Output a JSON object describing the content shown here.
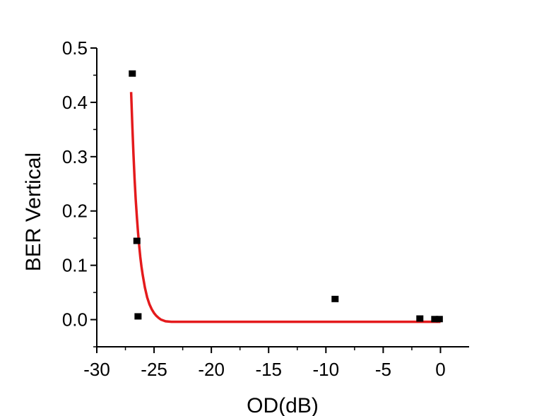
{
  "chart_data": {
    "type": "scatter",
    "xlabel": "OD(dB)",
    "ylabel": "BER Vertical",
    "xlim": [
      -30,
      2.5
    ],
    "ylim": [
      -0.05,
      0.5
    ],
    "x_ticks": [
      -30,
      -25,
      -20,
      -15,
      -10,
      -5,
      0
    ],
    "x_tick_labels": [
      "-30",
      "-25",
      "-20",
      "-15",
      "-10",
      "-5",
      "0"
    ],
    "y_ticks": [
      0.0,
      0.1,
      0.2,
      0.3,
      0.4,
      0.5
    ],
    "y_tick_labels": [
      "0.0",
      "0.1",
      "0.2",
      "0.3",
      "0.4",
      "0.5"
    ],
    "grid": false,
    "series": [
      {
        "kind": "scatter",
        "marker": "square",
        "color": "#000000",
        "points": [
          {
            "x": -26.9,
            "y": 0.453
          },
          {
            "x": -26.5,
            "y": 0.145
          },
          {
            "x": -26.4,
            "y": 0.006
          },
          {
            "x": -9.2,
            "y": 0.038
          },
          {
            "x": -1.8,
            "y": 0.002
          },
          {
            "x": -0.5,
            "y": 0.001
          },
          {
            "x": -0.1,
            "y": 0.001
          }
        ]
      },
      {
        "kind": "fit-line",
        "color": "#e41a1c",
        "points": [
          {
            "x": -27.0,
            "y": 0.419
          },
          {
            "x": -26.9,
            "y": 0.357
          },
          {
            "x": -26.8,
            "y": 0.305
          },
          {
            "x": -26.7,
            "y": 0.259
          },
          {
            "x": -26.6,
            "y": 0.221
          },
          {
            "x": -26.5,
            "y": 0.188
          },
          {
            "x": -26.4,
            "y": 0.16
          },
          {
            "x": -26.3,
            "y": 0.136
          },
          {
            "x": -26.2,
            "y": 0.115
          },
          {
            "x": -26.1,
            "y": 0.098
          },
          {
            "x": -26.0,
            "y": 0.083
          },
          {
            "x": -25.8,
            "y": 0.059
          },
          {
            "x": -25.6,
            "y": 0.041
          },
          {
            "x": -25.4,
            "y": 0.028
          },
          {
            "x": -25.2,
            "y": 0.019
          },
          {
            "x": -25.0,
            "y": 0.012
          },
          {
            "x": -24.8,
            "y": 0.007
          },
          {
            "x": -24.6,
            "y": 0.003
          },
          {
            "x": -24.4,
            "y": 0.0
          },
          {
            "x": -24.0,
            "y": -0.003
          },
          {
            "x": -23.5,
            "y": -0.004
          },
          {
            "x": -20.0,
            "y": -0.004
          },
          {
            "x": -15.0,
            "y": -0.004
          },
          {
            "x": -10.0,
            "y": -0.004
          },
          {
            "x": -5.0,
            "y": -0.004
          },
          {
            "x": 0.0,
            "y": -0.004
          }
        ]
      }
    ]
  }
}
